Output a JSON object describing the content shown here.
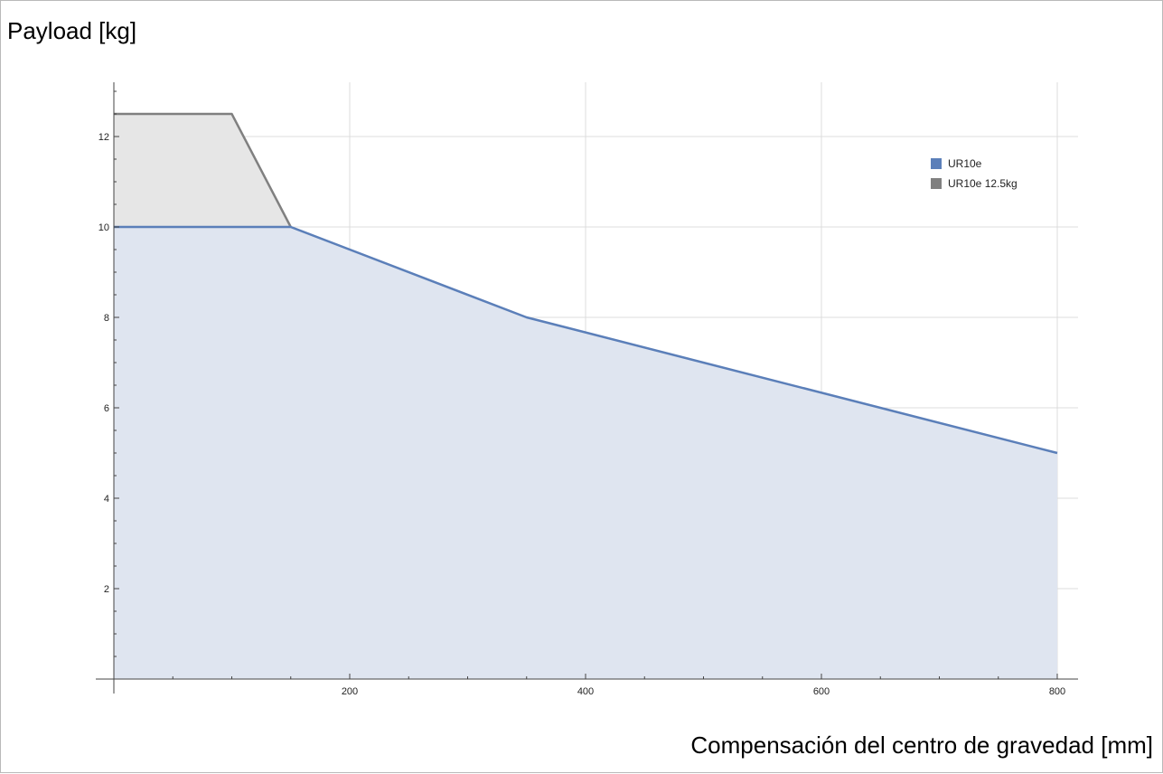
{
  "chart_data": {
    "type": "area",
    "xlabel": "Compensación del centro de gravedad [mm]",
    "ylabel": "Payload [kg]",
    "xlim": [
      -5,
      815
    ],
    "ylim": [
      0,
      13.1
    ],
    "x_ticks": [
      200,
      400,
      600,
      800
    ],
    "y_ticks": [
      2,
      4,
      6,
      8,
      10,
      12
    ],
    "grid": true,
    "legend_position": "top-right",
    "series": [
      {
        "name": "UR10e 12.5kg",
        "color": "#808080",
        "fill": "#e6e6e6",
        "x": [
          0,
          100,
          150
        ],
        "y": [
          12.5,
          12.5,
          10
        ]
      },
      {
        "name": "UR10e",
        "color": "#5b7fb9",
        "fill": "#dfe5f0",
        "x": [
          0,
          150,
          350,
          800
        ],
        "y": [
          10,
          10,
          8,
          5
        ]
      }
    ],
    "legend": [
      "UR10e",
      "UR10e 12.5kg"
    ]
  }
}
